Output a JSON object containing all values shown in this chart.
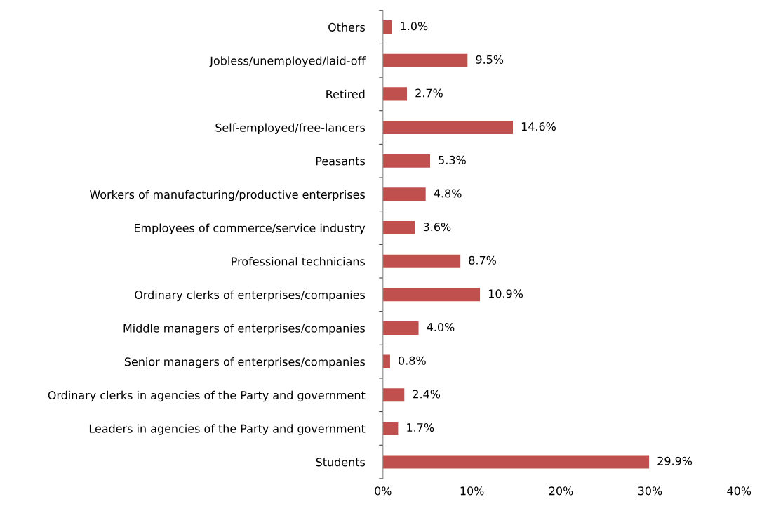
{
  "chart_data": {
    "type": "bar",
    "orientation": "horizontal",
    "categories": [
      "Others",
      "Jobless/unemployed/laid-off",
      "Retired",
      "Self-employed/free-lancers",
      "Peasants",
      "Workers of manufacturing/productive enterprises",
      "Employees of commerce/service industry",
      "Professional technicians",
      "Ordinary clerks of enterprises/companies",
      "Middle managers of enterprises/companies",
      "Senior managers of enterprises/companies",
      "Ordinary clerks in agencies of the Party and government",
      "Leaders in agencies of the Party and government",
      "Students"
    ],
    "values": [
      1.0,
      9.5,
      2.7,
      14.6,
      5.3,
      4.8,
      3.6,
      8.7,
      10.9,
      4.0,
      0.8,
      2.4,
      1.7,
      29.9
    ],
    "value_labels": [
      "1.0%",
      "9.5%",
      "2.7%",
      "14.6%",
      "5.3%",
      "4.8%",
      "3.6%",
      "8.7%",
      "10.9%",
      "4.0%",
      "0.8%",
      "2.4%",
      "1.7%",
      "29.9%"
    ],
    "color": "#c0504d",
    "xlim": [
      0,
      40
    ],
    "xticks": [
      {
        "value": 0,
        "label": "0%"
      },
      {
        "value": 10,
        "label": "10%"
      },
      {
        "value": 20,
        "label": "20%"
      },
      {
        "value": 30,
        "label": "30%"
      },
      {
        "value": 40,
        "label": "40%"
      }
    ],
    "grid": false,
    "legend": false
  }
}
